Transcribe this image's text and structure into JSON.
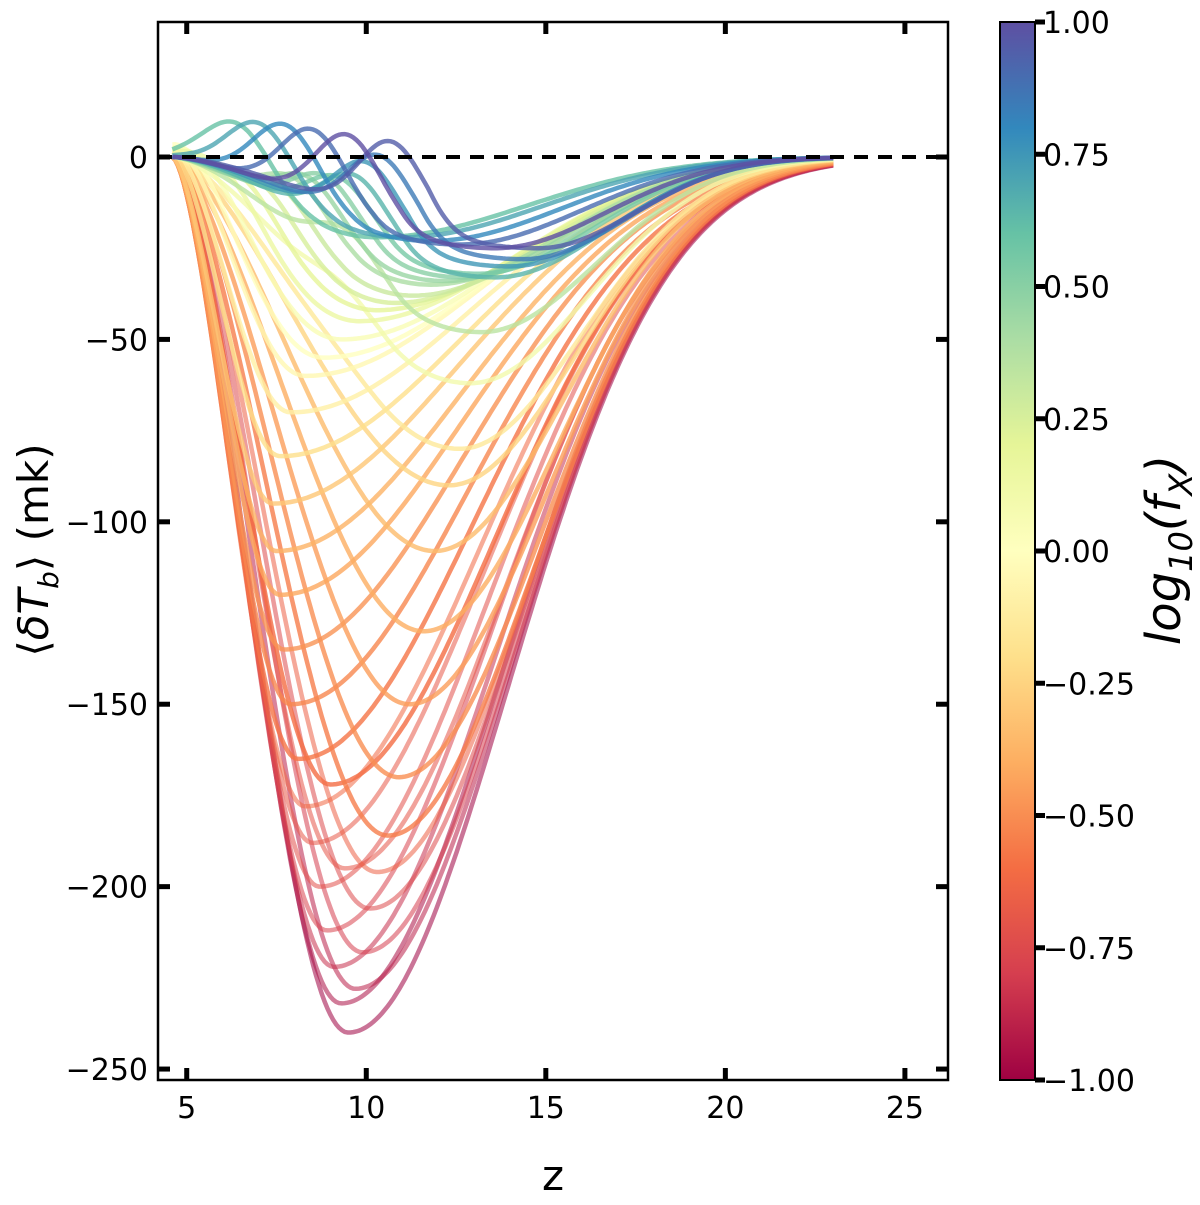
{
  "chart_data": {
    "type": "line",
    "title": "",
    "xlabel": "z",
    "ylabel": "⟨δT_b⟩ (mk)",
    "xlim": [
      4.2,
      26.2
    ],
    "ylim": [
      -253,
      37
    ],
    "xticks": [
      5,
      10,
      15,
      20,
      25
    ],
    "yticks": [
      0,
      -50,
      -100,
      -150,
      -200,
      -250
    ],
    "xtick_labels": [
      "5",
      "10",
      "15",
      "20",
      "25"
    ],
    "ytick_labels": [
      "0",
      "−50",
      "−100",
      "−150",
      "−200",
      "−250"
    ],
    "grid": false,
    "reference_line": {
      "y": 0,
      "style": "dashed",
      "color": "#000000"
    },
    "colorbar": {
      "label": "log10(f_X)",
      "label_base": "log",
      "label_sub": "10",
      "label_arg": "(f",
      "label_arg_sub": "X",
      "label_close": ")",
      "range": [
        -1.0,
        1.0
      ],
      "colormap": "Spectral",
      "ticks": [
        1.0,
        0.75,
        0.5,
        0.25,
        0.0,
        -0.25,
        -0.5,
        -0.75,
        -1.0
      ],
      "tick_labels": [
        "1.00",
        "0.75",
        "0.50",
        "0.25",
        "0.00",
        "−0.25",
        "−0.50",
        "−0.75",
        "−1.00"
      ],
      "colors": [
        "#9e0142",
        "#d53e4f",
        "#f46d43",
        "#fdae61",
        "#fee08b",
        "#ffffbf",
        "#e6f598",
        "#abdda4",
        "#66c2a5",
        "#3288bd",
        "#5e4fa2"
      ]
    },
    "series_model": {
      "description_values": "curves parameterised by log10(f_X); each curve: start z, trough z, trough depth, peak height",
      "curves": [
        {
          "log_fx": -1.0,
          "z_trough": 9.5,
          "depth": -240,
          "peak": 0,
          "z_end": 23
        },
        {
          "log_fx": -0.95,
          "z_trough": 9.3,
          "depth": -232,
          "peak": 0,
          "z_end": 23
        },
        {
          "log_fx": -0.9,
          "z_trough": 9.7,
          "depth": -228,
          "peak": 0,
          "z_end": 23
        },
        {
          "log_fx": -0.85,
          "z_trough": 9.1,
          "depth": -222,
          "peak": 0,
          "z_end": 23
        },
        {
          "log_fx": -0.8,
          "z_trough": 9.9,
          "depth": -218,
          "peak": 0,
          "z_end": 23
        },
        {
          "log_fx": -0.78,
          "z_trough": 8.9,
          "depth": -212,
          "peak": 0,
          "z_end": 23
        },
        {
          "log_fx": -0.75,
          "z_trough": 10.1,
          "depth": -206,
          "peak": 0,
          "z_end": 23
        },
        {
          "log_fx": -0.72,
          "z_trough": 8.7,
          "depth": -200,
          "peak": 0,
          "z_end": 23
        },
        {
          "log_fx": -0.7,
          "z_trough": 9.4,
          "depth": -195,
          "peak": 0,
          "z_end": 23
        },
        {
          "log_fx": -0.68,
          "z_trough": 8.5,
          "depth": -188,
          "peak": 0,
          "z_end": 23
        },
        {
          "log_fx": -0.65,
          "z_trough": 10.3,
          "depth": -196,
          "peak": 0,
          "z_end": 23
        },
        {
          "log_fx": -0.62,
          "z_trough": 8.3,
          "depth": -178,
          "peak": 0,
          "z_end": 23
        },
        {
          "log_fx": -0.6,
          "z_trough": 9.0,
          "depth": -172,
          "peak": 0,
          "z_end": 23
        },
        {
          "log_fx": -0.58,
          "z_trough": 8.1,
          "depth": -165,
          "peak": 0,
          "z_end": 23
        },
        {
          "log_fx": -0.55,
          "z_trough": 10.6,
          "depth": -186,
          "peak": 0,
          "z_end": 23
        },
        {
          "log_fx": -0.52,
          "z_trough": 7.9,
          "depth": -150,
          "peak": 0,
          "z_end": 23
        },
        {
          "log_fx": -0.5,
          "z_trough": 10.9,
          "depth": -170,
          "peak": 0,
          "z_end": 23
        },
        {
          "log_fx": -0.48,
          "z_trough": 7.7,
          "depth": -135,
          "peak": 0,
          "z_end": 23
        },
        {
          "log_fx": -0.45,
          "z_trough": 11.2,
          "depth": -150,
          "peak": 0,
          "z_end": 23
        },
        {
          "log_fx": -0.42,
          "z_trough": 7.6,
          "depth": -120,
          "peak": 0,
          "z_end": 23
        },
        {
          "log_fx": -0.4,
          "z_trough": 11.6,
          "depth": -130,
          "peak": 0,
          "z_end": 23
        },
        {
          "log_fx": -0.38,
          "z_trough": 7.5,
          "depth": -108,
          "peak": 0,
          "z_end": 23
        },
        {
          "log_fx": -0.35,
          "z_trough": 11.9,
          "depth": -108,
          "peak": 0,
          "z_end": 23
        },
        {
          "log_fx": -0.3,
          "z_trough": 7.4,
          "depth": -95,
          "peak": 0,
          "z_end": 23
        },
        {
          "log_fx": -0.25,
          "z_trough": 12.3,
          "depth": -90,
          "peak": 0,
          "z_end": 23
        },
        {
          "log_fx": -0.2,
          "z_trough": 7.6,
          "depth": -82,
          "peak": 2,
          "z_end": 23
        },
        {
          "log_fx": -0.15,
          "z_trough": 12.6,
          "depth": -80,
          "peak": 2,
          "z_end": 23
        },
        {
          "log_fx": -0.1,
          "z_trough": 7.9,
          "depth": -70,
          "peak": 3,
          "z_end": 23
        },
        {
          "log_fx": -0.05,
          "z_trough": 8.3,
          "depth": -60,
          "peak": 4,
          "z_end": 23
        },
        {
          "log_fx": 0.0,
          "z_trough": 8.8,
          "depth": -55,
          "peak": 5,
          "z_end": 23
        },
        {
          "log_fx": 0.05,
          "z_trough": 9.3,
          "depth": -50,
          "peak": 6,
          "z_end": 23
        },
        {
          "log_fx": 0.1,
          "z_trough": 12.9,
          "depth": -62,
          "peak": 7,
          "z_end": 23
        },
        {
          "log_fx": 0.15,
          "z_trough": 9.8,
          "depth": -45,
          "peak": 8,
          "z_end": 23
        },
        {
          "log_fx": 0.2,
          "z_trough": 10.3,
          "depth": -42,
          "peak": 9,
          "z_end": 23
        },
        {
          "log_fx": 0.25,
          "z_trough": 10.8,
          "depth": -40,
          "peak": 10,
          "z_end": 23
        },
        {
          "log_fx": 0.3,
          "z_trough": 11.3,
          "depth": -38,
          "peak": 11,
          "z_end": 23
        },
        {
          "log_fx": 0.35,
          "z_trough": 13.2,
          "depth": -48,
          "peak": 12,
          "z_end": 23
        },
        {
          "log_fx": 0.4,
          "z_trough": 11.8,
          "depth": -35,
          "peak": 13,
          "z_end": 23
        },
        {
          "log_fx": 0.45,
          "z_trough": 12.2,
          "depth": -34,
          "peak": 14,
          "z_end": 23
        },
        {
          "log_fx": 0.5,
          "z_trough": 12.7,
          "depth": -33,
          "peak": 15,
          "z_end": 23
        },
        {
          "log_fx": 0.55,
          "z_trough": 13.1,
          "depth": -32,
          "peak": 15,
          "z_end": 23
        },
        {
          "log_fx": 0.6,
          "z_trough": 10.3,
          "depth": -22,
          "peak": 16,
          "z_end": 23
        },
        {
          "log_fx": 0.65,
          "z_trough": 13.6,
          "depth": -33,
          "peak": 17,
          "z_end": 23
        },
        {
          "log_fx": 0.7,
          "z_trough": 11.0,
          "depth": -22,
          "peak": 18,
          "z_end": 23
        },
        {
          "log_fx": 0.75,
          "z_trough": 14.0,
          "depth": -30,
          "peak": 19,
          "z_end": 23
        },
        {
          "log_fx": 0.8,
          "z_trough": 11.8,
          "depth": -23,
          "peak": 20,
          "z_end": 23
        },
        {
          "log_fx": 0.85,
          "z_trough": 14.4,
          "depth": -28,
          "peak": 20,
          "z_end": 23
        },
        {
          "log_fx": 0.9,
          "z_trough": 12.6,
          "depth": -24,
          "peak": 21,
          "z_end": 23
        },
        {
          "log_fx": 0.95,
          "z_trough": 14.8,
          "depth": -25,
          "peak": 22,
          "z_end": 23
        },
        {
          "log_fx": 1.0,
          "z_trough": 13.6,
          "depth": -25,
          "peak": 22,
          "z_end": 23
        }
      ]
    }
  }
}
